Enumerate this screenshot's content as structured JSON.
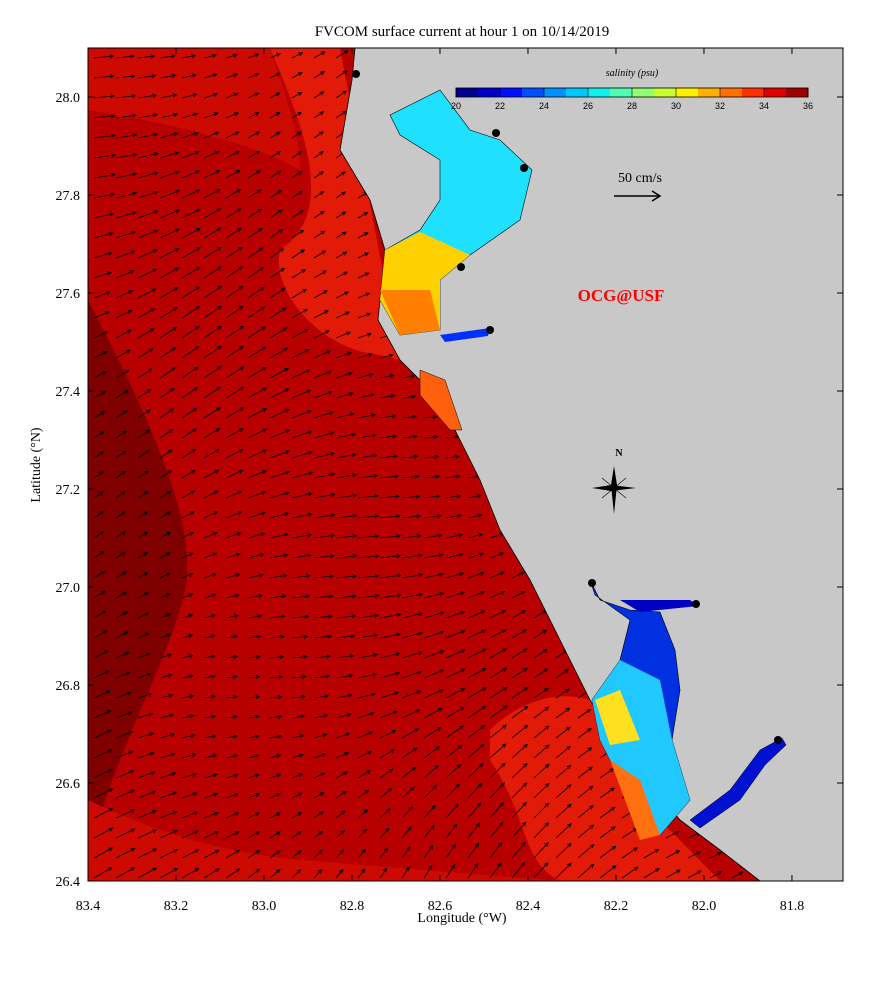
{
  "title": "FVCOM surface current at hour 1 on 10/14/2019",
  "x_axis": {
    "label": "Longitude (°W)",
    "lim": [
      83.4,
      81.684
    ],
    "ticks": [
      83.4,
      83.2,
      {
        "value": 83,
        "label": "83.0"
      },
      82.8,
      82.6,
      82.4,
      82.2,
      {
        "value": 82,
        "label": "82.0"
      },
      81.8
    ]
  },
  "y_axis": {
    "label": "Latitude (°N)",
    "lim": [
      26.4,
      28.1
    ],
    "ticks": [
      26.4,
      26.6,
      26.8,
      {
        "value": 27,
        "label": "27.0"
      },
      27.2,
      27.4,
      27.6,
      27.8,
      {
        "value": 28,
        "label": "28.0"
      }
    ]
  },
  "colorbar": {
    "label": "salinity (psu)",
    "lim": [
      20,
      36
    ],
    "ticks": [
      20,
      22,
      24,
      26,
      28,
      30,
      32,
      34,
      36
    ],
    "colors": [
      "#00008f",
      "#0000c8",
      "#0010ff",
      "#0050ff",
      "#0090ff",
      "#00c8ff",
      "#10f0ef",
      "#50ffaf",
      "#90ff70",
      "#c8ff30",
      "#ffef00",
      "#ffb000",
      "#ff7000",
      "#ff3000",
      "#e00000",
      "#a00000"
    ]
  },
  "scale_arrow": "50 cm/s",
  "credit": "OCG@USF",
  "compass": "N"
}
